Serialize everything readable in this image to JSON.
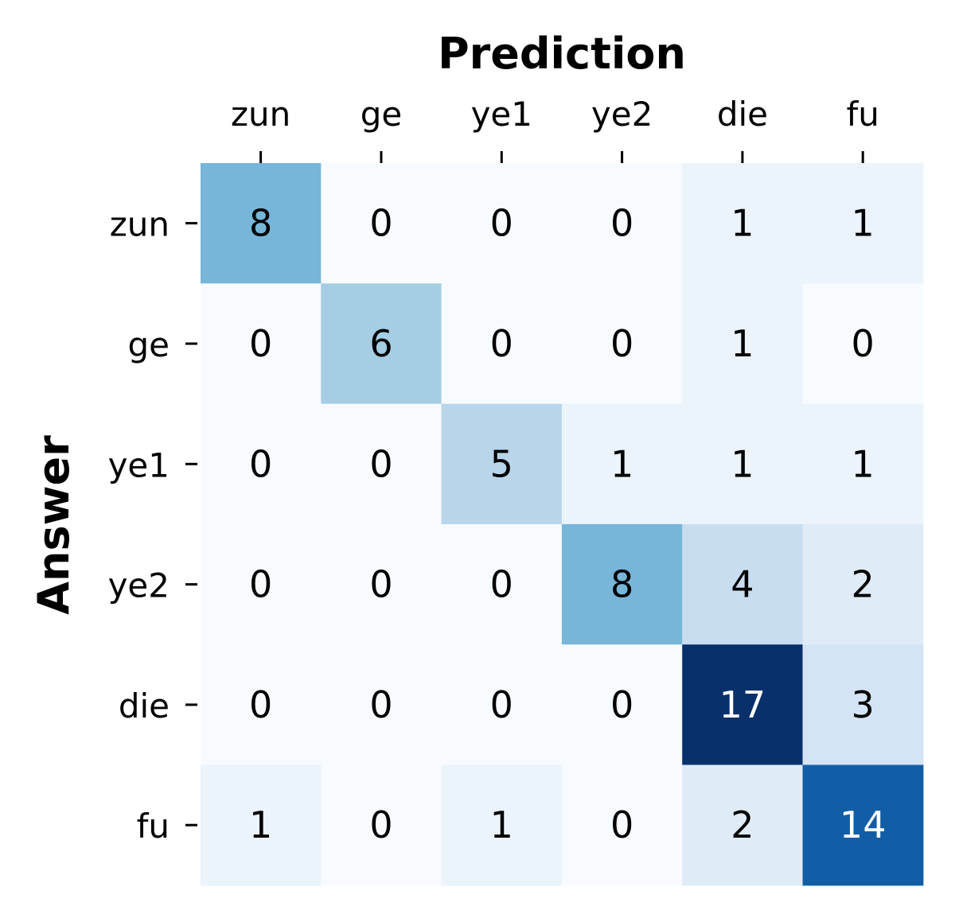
{
  "chart_data": {
    "type": "heatmap",
    "title": "",
    "xlabel": "Prediction",
    "ylabel": "Answer",
    "x_categories": [
      "zun",
      "ge",
      "ye1",
      "ye2",
      "die",
      "fu"
    ],
    "y_categories": [
      "zun",
      "ge",
      "ye1",
      "ye2",
      "die",
      "fu"
    ],
    "values": [
      [
        8,
        0,
        0,
        0,
        1,
        1
      ],
      [
        0,
        6,
        0,
        0,
        1,
        0
      ],
      [
        0,
        0,
        5,
        1,
        1,
        1
      ],
      [
        0,
        0,
        0,
        8,
        4,
        2
      ],
      [
        0,
        0,
        0,
        0,
        17,
        3
      ],
      [
        1,
        0,
        1,
        0,
        2,
        14
      ]
    ],
    "vmin": 0,
    "vmax": 17,
    "colormap": "Blues",
    "colorbar": false,
    "x_axis_position": "top",
    "annotations": true
  }
}
